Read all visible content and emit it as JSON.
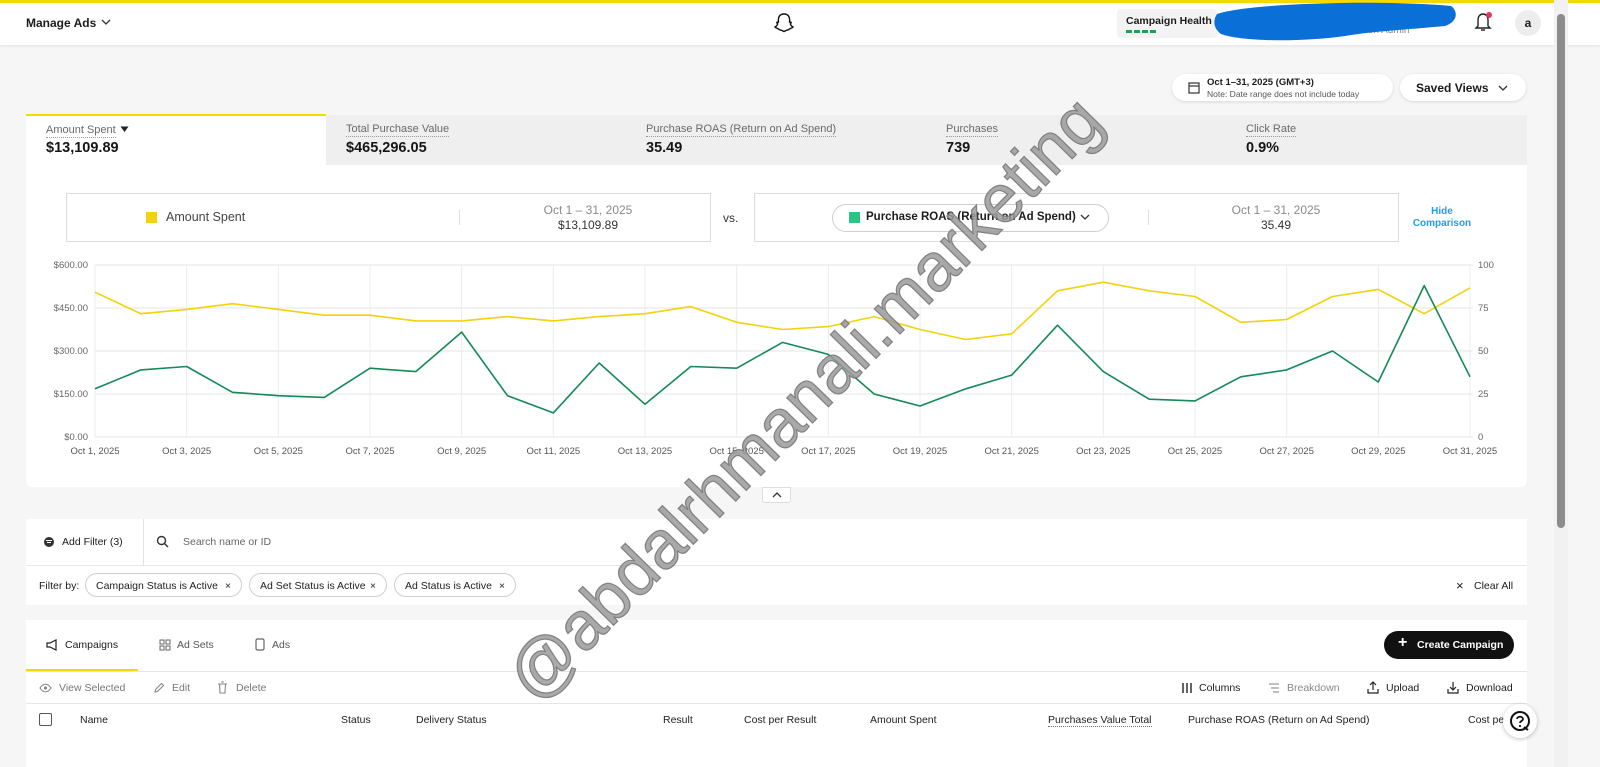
{
  "header": {
    "title": "Manage Ads",
    "campaign_health": "Campaign Health",
    "org_role": "ization Admin",
    "avatar": "a"
  },
  "date_range": {
    "label": "Oct 1–31, 2025 (GMT+3)",
    "note": "Note: Date range does not include today"
  },
  "saved_views": "Saved Views",
  "metrics": [
    {
      "label": "Amount Spent",
      "value": "$13,109.89"
    },
    {
      "label": "Total Purchase Value",
      "value": "$465,296.05"
    },
    {
      "label": "Purchase ROAS (Return on Ad Spend)",
      "value": "35.49"
    },
    {
      "label": "Purchases",
      "value": "739"
    },
    {
      "label": "Click Rate",
      "value": "0.9%"
    }
  ],
  "comparison": {
    "left_period": "Oct 1 – 31, 2025",
    "left_value": "$13,109.89",
    "vs": "vs.",
    "right_period": "Oct 1 – 31, 2025",
    "right_value": "35.49",
    "hide": "Hide Comparison"
  },
  "chart_data": {
    "type": "line",
    "categories": [
      "Oct 1, 2025",
      null,
      "Oct 3, 2025",
      null,
      "Oct 5, 2025",
      null,
      "Oct 7, 2025",
      null,
      "Oct 9, 2025",
      null,
      "Oct 11, 2025",
      null,
      "Oct 13, 2025",
      null,
      "Oct 15, 2025",
      null,
      "Oct 17, 2025",
      null,
      "Oct 19, 2025",
      null,
      "Oct 21, 2025",
      null,
      "Oct 23, 2025",
      null,
      "Oct 25, 2025",
      null,
      "Oct 27, 2025",
      null,
      "Oct 29, 2025",
      null,
      "Oct 31, 2025"
    ],
    "series": [
      {
        "name": "Amount Spent",
        "color": "#f2d20c",
        "axis": "y",
        "values": [
          505,
          430,
          445,
          465,
          445,
          425,
          425,
          405,
          405,
          420,
          405,
          420,
          430,
          455,
          400,
          375,
          385,
          420,
          375,
          340,
          360,
          510,
          540,
          510,
          490,
          400,
          410,
          490,
          515,
          430,
          520
        ]
      },
      {
        "name": "Purchase ROAS (Return on Ad Spend)",
        "color": "#138a57",
        "axis": "y2",
        "values": [
          28,
          39,
          41,
          26,
          24,
          23,
          40,
          38,
          61,
          24,
          14,
          43,
          19,
          41,
          40,
          55,
          48,
          25,
          18,
          28,
          36,
          65,
          38,
          22,
          21,
          35,
          39,
          50,
          32,
          88,
          35
        ]
      }
    ],
    "ylim": [
      0,
      600
    ],
    "yticks": [
      {
        "value": 0,
        "label": "$0.00"
      },
      {
        "value": 150,
        "label": "$150.00"
      },
      {
        "value": 300,
        "label": "$300.00"
      },
      {
        "value": 450,
        "label": "$450.00"
      },
      {
        "value": 600,
        "label": "$600.00"
      }
    ],
    "y2lim": [
      0,
      100
    ],
    "y2ticks": [
      0,
      25,
      50,
      75,
      100
    ],
    "grid": true
  },
  "watermark": "@abdalrhmanali.marketing",
  "filters": {
    "add": "Add Filter (3)",
    "search": "Search name or ID",
    "by": "Filter by:",
    "chips": [
      "Campaign Status is Active",
      "Ad Set Status is Active",
      "Ad Status is Active"
    ],
    "clear": "Clear All"
  },
  "tabs": [
    "Campaigns",
    "Ad Sets",
    "Ads"
  ],
  "create": "Create Campaign",
  "toolbar_left": [
    "View Selected",
    "Edit",
    "Delete"
  ],
  "toolbar_right": [
    "Columns",
    "Breakdown",
    "Upload",
    "Download"
  ],
  "table": {
    "columns": [
      "Name",
      "Status",
      "Delivery Status",
      "Result",
      "Cost per Result",
      "Amount Spent",
      "Purchases Value Total",
      "Purchase ROAS (Return on Ad Spend)",
      "Cost pe"
    ]
  }
}
